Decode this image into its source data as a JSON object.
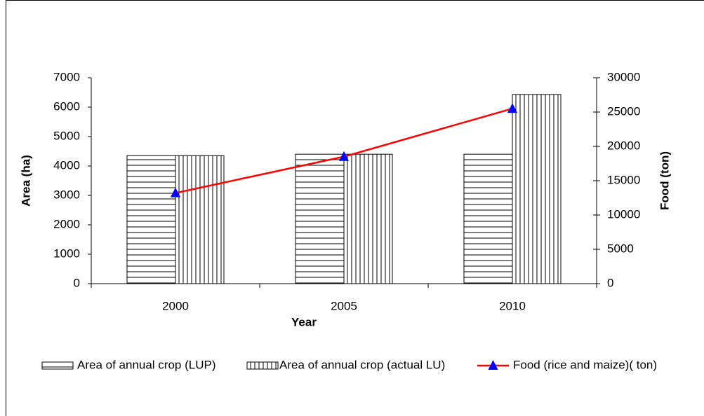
{
  "chart_data": {
    "type": "bar",
    "categories": [
      "2000",
      "2005",
      "2010"
    ],
    "x_label": "Year",
    "y_label": "Area (ha)",
    "y2_label": "Food (ton)",
    "ylim": [
      0,
      7000
    ],
    "yticks": [
      0,
      1000,
      2000,
      3000,
      4000,
      5000,
      6000,
      7000
    ],
    "y2lim": [
      0,
      30000
    ],
    "y2ticks": [
      0,
      5000,
      10000,
      15000,
      20000,
      25000,
      30000
    ],
    "series": [
      {
        "name": "Area of annual crop (LUP)",
        "type": "bar",
        "pattern": "horizontal",
        "color": "#000000",
        "values": [
          4350,
          4400,
          4400
        ]
      },
      {
        "name": "Area of annual crop (actual LU)",
        "type": "bar",
        "pattern": "vertical",
        "color": "#000000",
        "values": [
          4350,
          4400,
          6430
        ]
      },
      {
        "name": "Food (rice and maize)( ton)",
        "type": "line",
        "axis": "y2",
        "color": "#ff0000",
        "marker_color": "#0000ff",
        "values": [
          13200,
          18500,
          25500
        ]
      }
    ],
    "legend": "bottom"
  }
}
